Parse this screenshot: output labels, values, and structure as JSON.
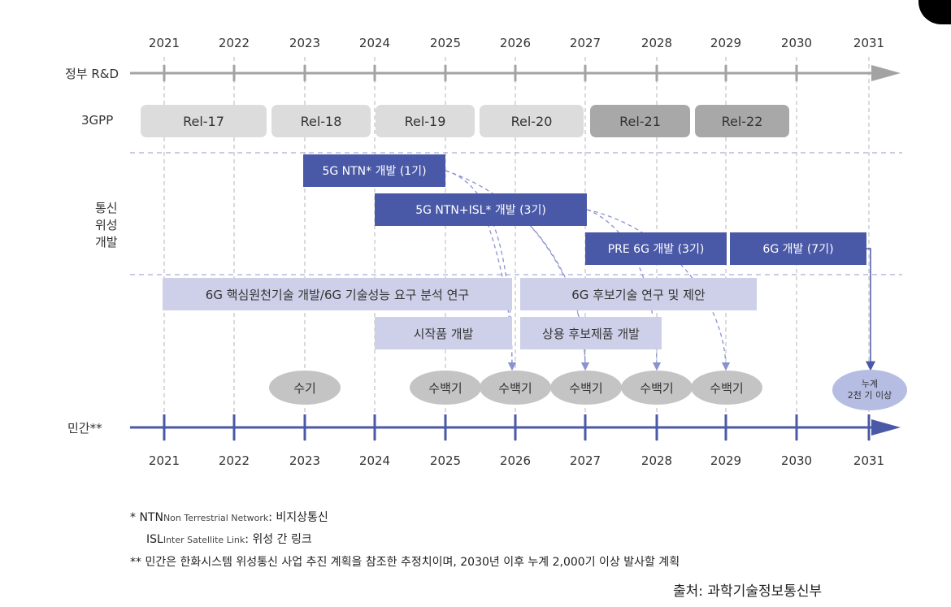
{
  "years": [
    "2021",
    "2022",
    "2023",
    "2024",
    "2025",
    "2026",
    "2027",
    "2028",
    "2029",
    "2030",
    "2031"
  ],
  "rows": {
    "government": "정부 R&D",
    "threegpp": "3GPP",
    "satellite": [
      "통신",
      "위성",
      "개발"
    ],
    "private": "민간**"
  },
  "releases": [
    {
      "label": "Rel-17",
      "shade": "light"
    },
    {
      "label": "Rel-18",
      "shade": "light"
    },
    {
      "label": "Rel-19",
      "shade": "light"
    },
    {
      "label": "Rel-20",
      "shade": "light"
    },
    {
      "label": "Rel-21",
      "shade": "dark"
    },
    {
      "label": "Rel-22",
      "shade": "dark"
    }
  ],
  "satellite_programs": [
    "5G NTN* 개발 (1기)",
    "5G NTN+ISL* 개발 (3기)",
    "PRE 6G 개발 (3기)",
    "6G 개발 (7기)"
  ],
  "research": [
    "6G 핵심원천기술 개발/6G 기술성능 요구 분석 연구",
    "6G 후보기술 연구 및 제안",
    "시작품 개발",
    "상용 후보제품 개발"
  ],
  "launches": [
    "수기",
    "수백기",
    "수백기",
    "수백기",
    "수백기",
    "수백기"
  ],
  "cumulative": {
    "line1": "누계",
    "line2": "2천 기 이상"
  },
  "notes": {
    "ntn_prefix": "*  NTN",
    "ntn_sub": "Non Terrestrial Network",
    "ntn_desc": ": 비지상통신",
    "isl_prefix": "ISL",
    "isl_sub": "Inter Satellite Link",
    "isl_desc": ": 위성 간 링크",
    "private_note": "** 민간은 한화시스템 위성통신 사업 추진 계획을 참조한 추정치이며, 2030년 이후 누계 2,000기 이상 발사할 계획"
  },
  "source": "출처: 과학기술정보통신부",
  "colors": {
    "gov_line": "#a3a3a3",
    "private_line": "#4a59a7",
    "sat_block": "#4a59a7",
    "research_block": "#cdd0e8"
  }
}
